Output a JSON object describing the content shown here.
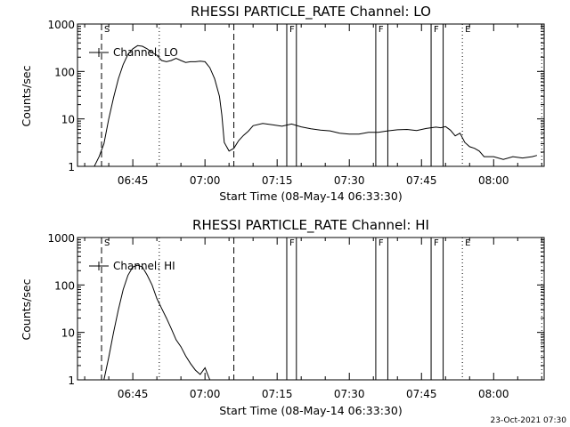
{
  "footer_timestamp": "23-Oct-2021 07:30",
  "chart_data": [
    {
      "type": "line",
      "title": "RHESSI PARTICLE_RATE Channel: LO",
      "xlabel": "Start Time (08-May-14 06:33:30)",
      "ylabel": "Counts/sec",
      "yscale": "log",
      "ylim": [
        1,
        1000
      ],
      "xlim": [
        "06:33:30",
        "08:10:30"
      ],
      "x_ticks": [
        "06:45",
        "07:00",
        "07:15",
        "07:30",
        "07:45",
        "08:00"
      ],
      "y_ticks": [
        "1",
        "10",
        "100",
        "1000"
      ],
      "legend": {
        "label": "Channel: LO",
        "position": "top-left"
      },
      "markers": [
        {
          "time": "06:38:30",
          "style": "dashed",
          "label": "S"
        },
        {
          "time": "06:50:30",
          "style": "dotted",
          "label": ""
        },
        {
          "time": "07:06:00",
          "style": "dashed",
          "label": ""
        },
        {
          "time": "07:17:00",
          "style": "solid",
          "label": "F"
        },
        {
          "time": "07:19:00",
          "style": "solid",
          "label": ""
        },
        {
          "time": "07:35:30",
          "style": "solid",
          "label": "F"
        },
        {
          "time": "07:38:00",
          "style": "solid",
          "label": ""
        },
        {
          "time": "07:47:00",
          "style": "solid",
          "label": "F"
        },
        {
          "time": "07:49:30",
          "style": "solid",
          "label": ""
        },
        {
          "time": "07:53:30",
          "style": "dotted",
          "label": "E"
        },
        {
          "time": "08:10:00",
          "style": "dotted",
          "label": ""
        }
      ],
      "series": [
        {
          "name": "Channel: LO",
          "x": [
            "06:36:00",
            "06:37:00",
            "06:38:00",
            "06:39:00",
            "06:40:00",
            "06:41:00",
            "06:42:00",
            "06:43:00",
            "06:44:00",
            "06:45:00",
            "06:46:00",
            "06:47:00",
            "06:48:00",
            "06:49:00",
            "06:50:00",
            "06:51:00",
            "06:52:00",
            "06:53:00",
            "06:54:00",
            "06:55:00",
            "06:56:00",
            "06:57:00",
            "06:58:00",
            "06:59:00",
            "07:00:00",
            "07:01:00",
            "07:02:00",
            "07:03:00",
            "07:03:30",
            "07:04:00",
            "07:05:00",
            "07:06:00",
            "07:07:00",
            "07:08:00",
            "07:09:00",
            "07:10:00",
            "07:12:00",
            "07:14:00",
            "07:16:00",
            "07:18:00",
            "07:20:00",
            "07:22:00",
            "07:24:00",
            "07:26:00",
            "07:28:00",
            "07:30:00",
            "07:32:00",
            "07:34:00",
            "07:36:00",
            "07:38:00",
            "07:40:00",
            "07:42:00",
            "07:44:00",
            "07:46:00",
            "07:48:00",
            "07:49:00",
            "07:50:00",
            "07:51:00",
            "07:52:00",
            "07:53:00",
            "07:54:00",
            "07:55:00",
            "07:56:00",
            "07:57:00",
            "07:58:00",
            "08:00:00",
            "08:02:00",
            "08:04:00",
            "08:06:00",
            "08:08:00",
            "08:09:00"
          ],
          "y": [
            1,
            1,
            1.6,
            3,
            10,
            28,
            70,
            140,
            230,
            300,
            350,
            340,
            300,
            250,
            220,
            170,
            160,
            170,
            190,
            170,
            155,
            160,
            160,
            165,
            160,
            120,
            70,
            30,
            12,
            3.2,
            2.1,
            2.4,
            3.5,
            4.5,
            5.5,
            7.2,
            8,
            7.5,
            7,
            7.8,
            6.8,
            6.2,
            5.8,
            5.6,
            5,
            4.8,
            4.8,
            5.2,
            5.2,
            5.6,
            5.9,
            6,
            5.7,
            6.3,
            6.7,
            6.5,
            6.9,
            5.8,
            4.4,
            5,
            3.2,
            2.6,
            2.4,
            2.1,
            1.6,
            1.6,
            1.4,
            1.6,
            1.5,
            1.6,
            1.7
          ]
        }
      ]
    },
    {
      "type": "line",
      "title": "RHESSI PARTICLE_RATE Channel: HI",
      "xlabel": "Start Time (08-May-14 06:33:30)",
      "ylabel": "Counts/sec",
      "yscale": "log",
      "ylim": [
        1,
        1000
      ],
      "xlim": [
        "06:33:30",
        "08:10:30"
      ],
      "x_ticks": [
        "06:45",
        "07:00",
        "07:15",
        "07:30",
        "07:45",
        "08:00"
      ],
      "y_ticks": [
        "1",
        "10",
        "100",
        "1000"
      ],
      "legend": {
        "label": "Channel: HI",
        "position": "top-left"
      },
      "markers": [
        {
          "time": "06:38:30",
          "style": "dashed",
          "label": "S"
        },
        {
          "time": "06:50:30",
          "style": "dotted",
          "label": ""
        },
        {
          "time": "07:06:00",
          "style": "dashed",
          "label": ""
        },
        {
          "time": "07:17:00",
          "style": "solid",
          "label": "F"
        },
        {
          "time": "07:19:00",
          "style": "solid",
          "label": ""
        },
        {
          "time": "07:35:30",
          "style": "solid",
          "label": "F"
        },
        {
          "time": "07:38:00",
          "style": "solid",
          "label": ""
        },
        {
          "time": "07:47:00",
          "style": "solid",
          "label": "F"
        },
        {
          "time": "07:49:30",
          "style": "solid",
          "label": ""
        },
        {
          "time": "07:53:30",
          "style": "dotted",
          "label": "E"
        },
        {
          "time": "08:10:00",
          "style": "dotted",
          "label": ""
        }
      ],
      "series": [
        {
          "name": "Channel: HI",
          "x": [
            "06:39:00",
            "06:40:00",
            "06:41:00",
            "06:42:00",
            "06:43:00",
            "06:44:00",
            "06:45:00",
            "06:46:00",
            "06:47:00",
            "06:48:00",
            "06:49:00",
            "06:50:00",
            "06:51:00",
            "06:52:00",
            "06:53:00",
            "06:54:00",
            "06:55:00",
            "06:56:00",
            "06:57:00",
            "06:58:00",
            "06:59:00",
            "07:00:00",
            "07:01:00"
          ],
          "y": [
            1,
            3,
            10,
            30,
            80,
            160,
            240,
            260,
            240,
            160,
            100,
            52,
            32,
            20,
            12,
            7,
            5,
            3.2,
            2.2,
            1.6,
            1.3,
            1.8,
            1
          ]
        }
      ]
    }
  ]
}
